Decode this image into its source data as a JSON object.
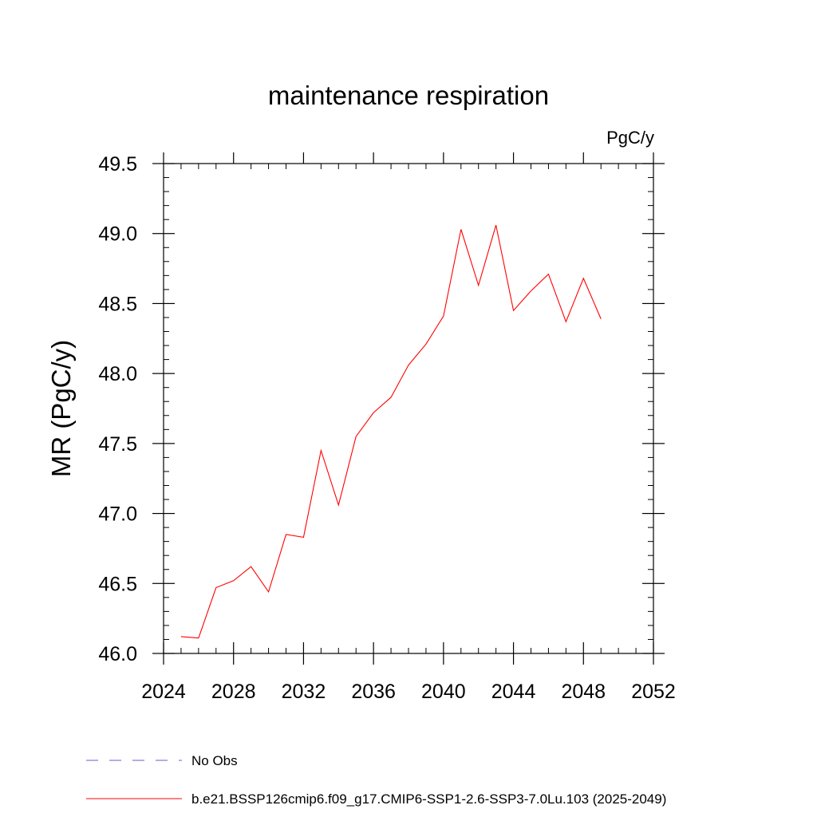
{
  "chart_data": {
    "type": "line",
    "title": "maintenance respiration",
    "units": "PgC/y",
    "xlabel": "",
    "ylabel": "MR  (PgC/y)",
    "xlim": [
      2024,
      2052
    ],
    "ylim": [
      46.0,
      49.5
    ],
    "x_ticks": [
      "2024",
      "2028",
      "2032",
      "2036",
      "2040",
      "2044",
      "2048",
      "2052"
    ],
    "y_ticks": [
      "46.0",
      "46.5",
      "47.0",
      "47.5",
      "48.0",
      "48.5",
      "49.0",
      "49.5"
    ],
    "grid": false,
    "series": [
      {
        "name": "b.e21.BSSP126cmip6.f09_g17.CMIP6-SSP1-2.6-SSP3-7.0Lu.103 (2025-2049)",
        "color": "#ff0000",
        "x": [
          2025,
          2026,
          2027,
          2028,
          2029,
          2030,
          2031,
          2032,
          2033,
          2034,
          2035,
          2036,
          2037,
          2038,
          2039,
          2040,
          2041,
          2042,
          2043,
          2044,
          2045,
          2046,
          2047,
          2048,
          2049
        ],
        "y": [
          46.12,
          46.11,
          46.47,
          46.52,
          46.62,
          46.44,
          46.85,
          46.83,
          47.45,
          47.06,
          47.55,
          47.72,
          47.83,
          48.06,
          48.21,
          48.41,
          49.03,
          48.63,
          49.06,
          48.45,
          48.59,
          48.71,
          48.37,
          48.68,
          48.39
        ]
      }
    ],
    "legend": [
      {
        "label": "No Obs",
        "style": "dashed",
        "color": "#6a5acd"
      },
      {
        "label": "b.e21.BSSP126cmip6.f09_g17.CMIP6-SSP1-2.6-SSP3-7.0Lu.103 (2025-2049)",
        "style": "solid",
        "color": "#ff0000"
      }
    ],
    "legend_position": "bottom-left"
  }
}
